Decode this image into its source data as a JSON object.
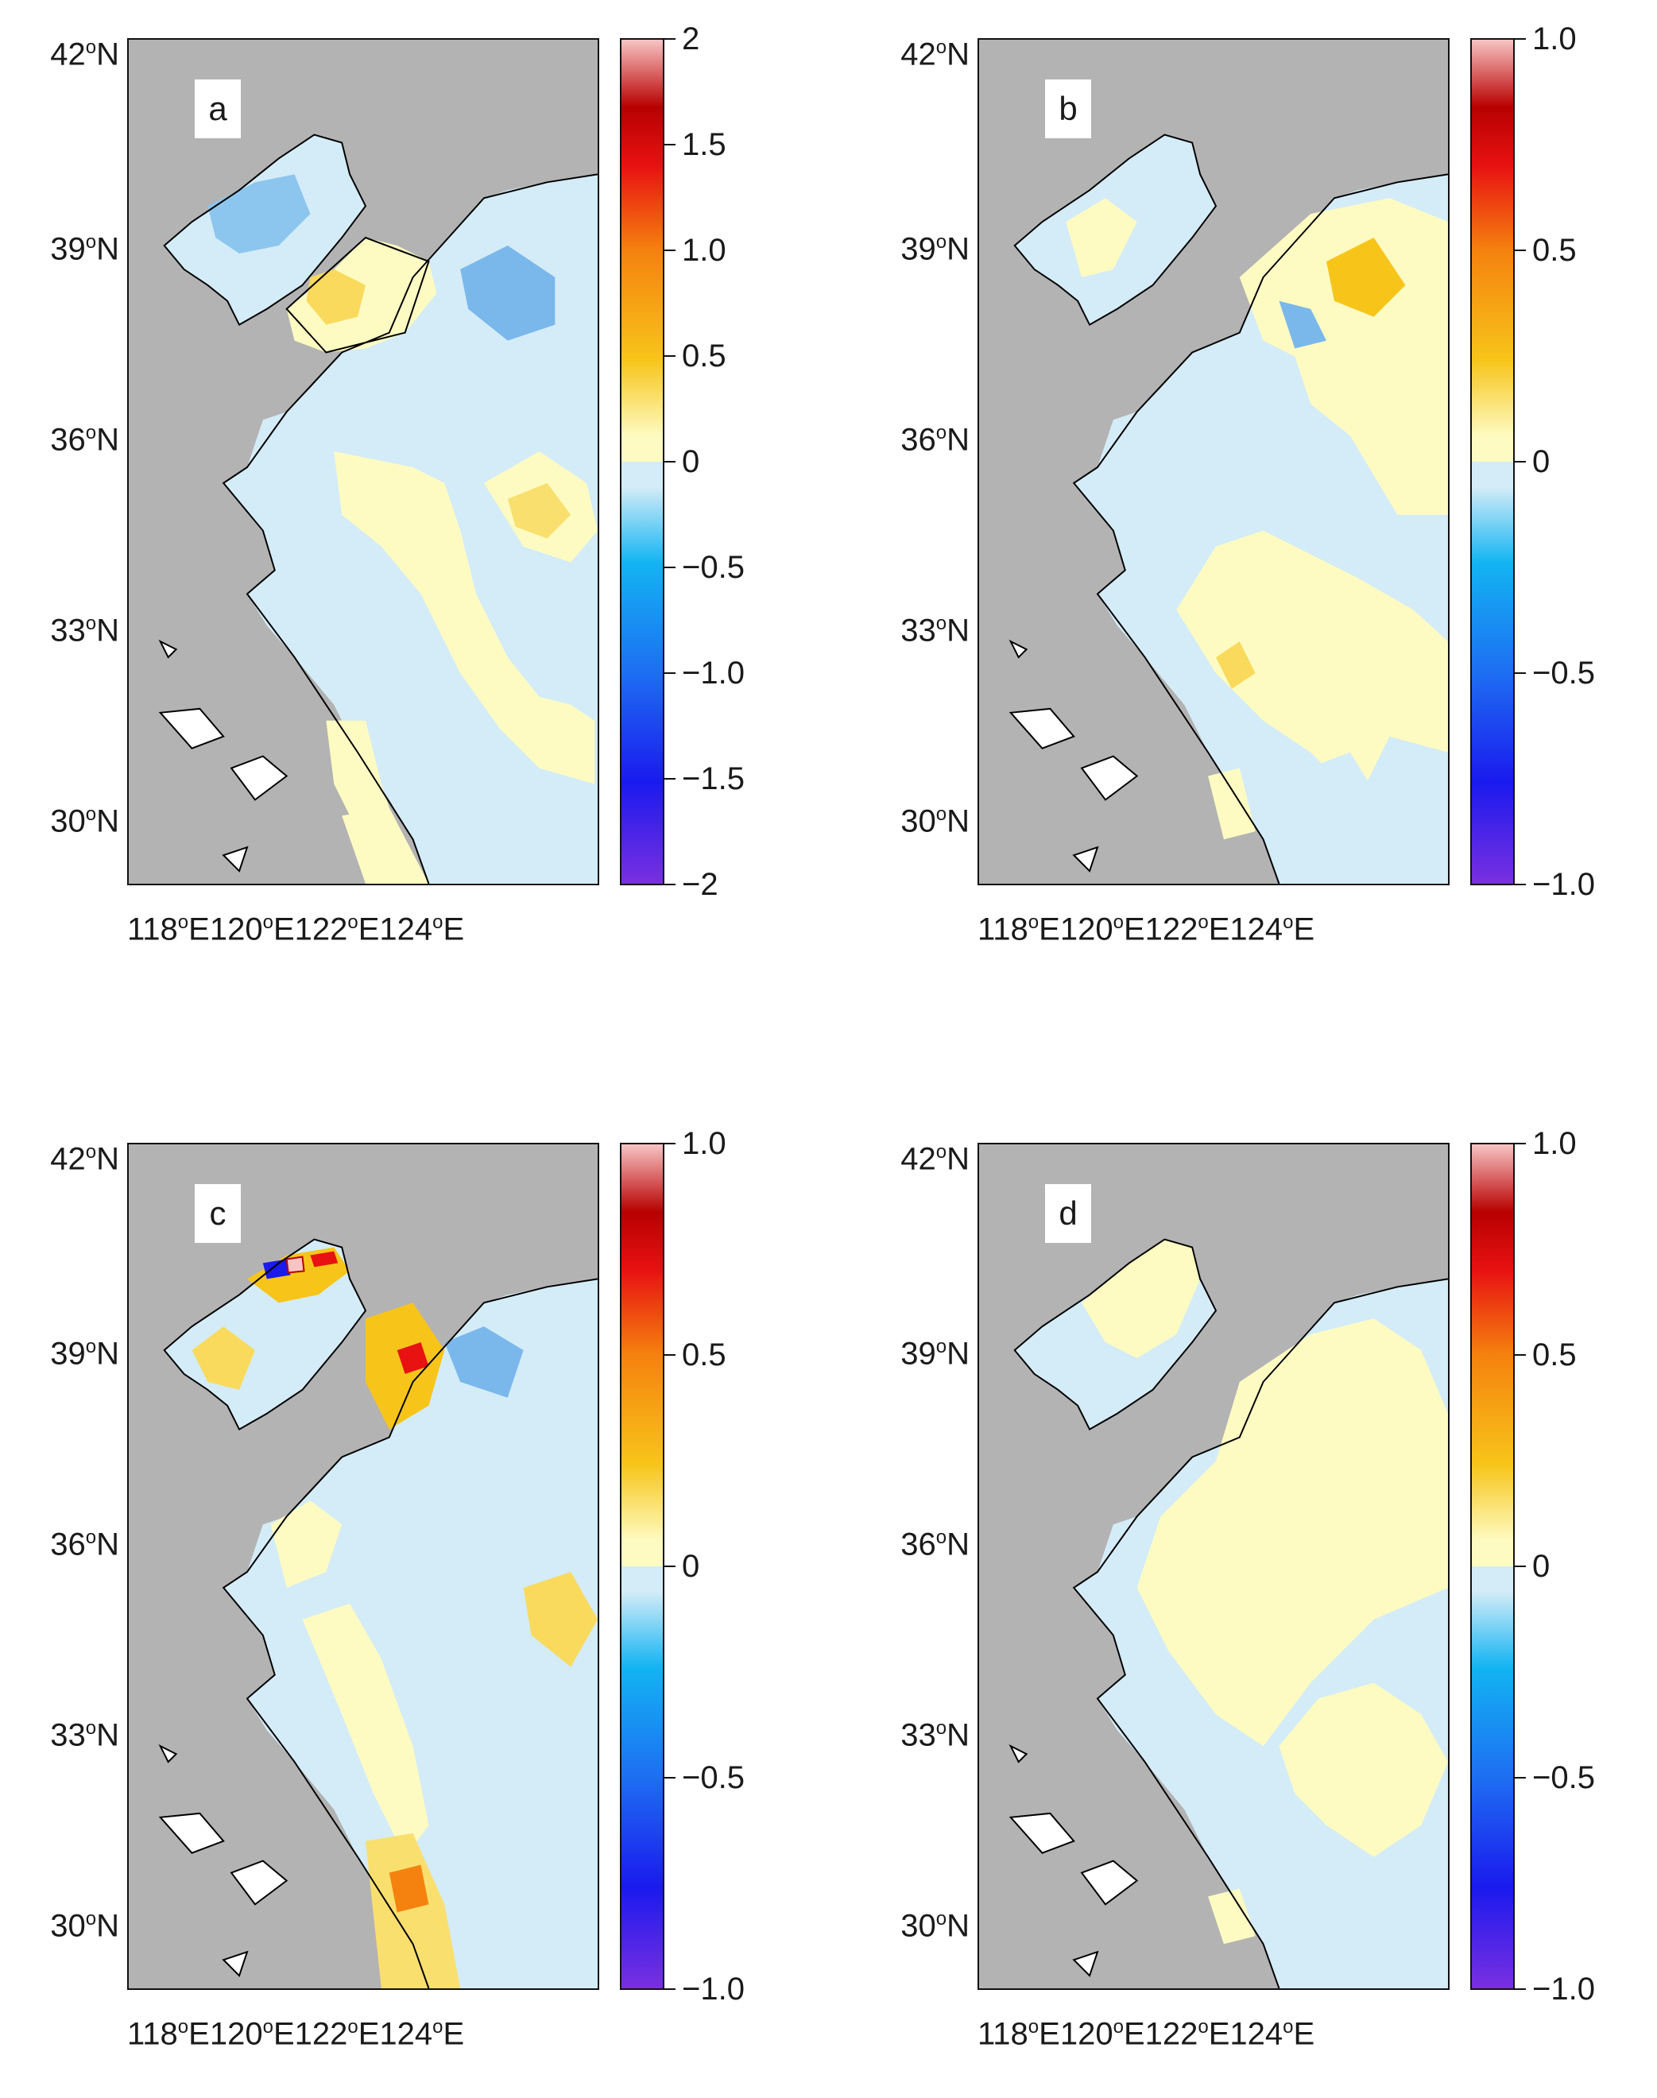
{
  "lat_labels": [
    "42",
    "39",
    "36",
    "33",
    "30"
  ],
  "lat_suffix": "N",
  "lon_labels": [
    "118",
    "120",
    "122",
    "124"
  ],
  "lon_suffix": "E",
  "degree_symbol": "o",
  "panels": [
    {
      "tag": "a",
      "colorbar": {
        "min": -2,
        "max": 2,
        "ticks": [
          "2",
          "1.5",
          "1.0",
          "0.5",
          "0",
          "−0.5",
          "−1.0",
          "−1.5",
          "−2"
        ]
      }
    },
    {
      "tag": "b",
      "colorbar": {
        "min": -1,
        "max": 1,
        "ticks": [
          "1.0",
          "0.5",
          "0",
          "−0.5",
          "−1.0"
        ]
      }
    },
    {
      "tag": "c",
      "colorbar": {
        "min": -1,
        "max": 1,
        "ticks": [
          "1.0",
          "0.5",
          "0",
          "−0.5",
          "−1.0"
        ]
      }
    },
    {
      "tag": "d",
      "colorbar": {
        "min": -1,
        "max": 1,
        "ticks": [
          "1.0",
          "0.5",
          "0",
          "−0.5",
          "−1.0"
        ]
      }
    }
  ],
  "colors": {
    "land": "#b3b3b3",
    "zero_band_neg": "#d4ecf7",
    "zero_band_pos": "#fefbc2",
    "colormap": [
      "#7a2fe0",
      "#1a1aee",
      "#1e6ef2",
      "#12b4f2",
      "#d4ecf7",
      "#fefbc2",
      "#f7c51a",
      "#f5820e",
      "#e81212",
      "#b80000",
      "#f8c4c4"
    ]
  }
}
